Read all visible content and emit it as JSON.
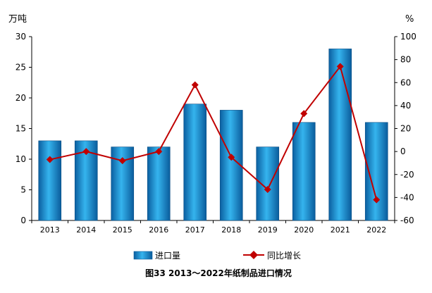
{
  "chart_data": {
    "type": "bar+line",
    "title": "图33  2013～2022年纸制品进口情况",
    "left_axis_unit": "万吨",
    "right_axis_unit": "%",
    "categories": [
      "2013",
      "2014",
      "2015",
      "2016",
      "2017",
      "2018",
      "2019",
      "2020",
      "2021",
      "2022"
    ],
    "left_ylim": [
      0,
      30
    ],
    "left_ticks": [
      "0",
      "5",
      "10",
      "15",
      "20",
      "25",
      "30"
    ],
    "right_ylim": [
      -60,
      100
    ],
    "right_ticks": [
      "-60",
      "-40",
      "-20",
      "0",
      "20",
      "40",
      "60",
      "80",
      "100"
    ],
    "grid": false,
    "legend_position": "bottom",
    "series": [
      {
        "name": "进口量",
        "type": "bar",
        "axis": "left",
        "color": "#1a8fd0",
        "values": [
          13,
          13,
          12,
          12,
          19,
          18,
          12,
          16,
          28,
          16
        ]
      },
      {
        "name": "同比增长",
        "type": "line",
        "axis": "right",
        "color": "#c00000",
        "values": [
          -7,
          0,
          -8,
          0,
          58,
          -5,
          -33,
          33,
          74,
          -42
        ]
      }
    ]
  }
}
